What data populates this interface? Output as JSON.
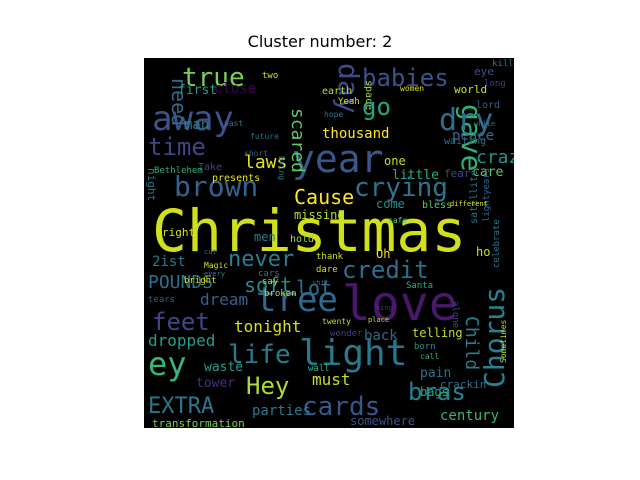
{
  "title": "Cluster number: 2",
  "chart_data": {
    "type": "wordcloud",
    "title": "Cluster number: 2",
    "background": "#000000",
    "colormap": [
      "#440154",
      "#3b528b",
      "#21918c",
      "#5ec962",
      "#fde725"
    ],
    "words": [
      {
        "text": "Christmas",
        "weight": 1.0,
        "color": "#d0e11c"
      },
      {
        "text": "love",
        "weight": 0.72,
        "color": "#48186a"
      },
      {
        "text": "year",
        "weight": 0.55,
        "color": "#38588c"
      },
      {
        "text": "light",
        "weight": 0.5,
        "color": "#2a788e"
      },
      {
        "text": "away",
        "weight": 0.48,
        "color": "#3b528b"
      },
      {
        "text": "tree",
        "weight": 0.47,
        "color": "#31688e"
      },
      {
        "text": "gave",
        "weight": 0.46,
        "color": "#2db27d"
      },
      {
        "text": "dry",
        "weight": 0.45,
        "color": "#2e6e8e"
      },
      {
        "text": "Chorus",
        "weight": 0.44,
        "color": "#26828e"
      },
      {
        "text": "ey",
        "weight": 0.43,
        "color": "#35b779"
      },
      {
        "text": "day",
        "weight": 0.42,
        "color": "#3e4989"
      },
      {
        "text": "brown",
        "weight": 0.4,
        "color": "#33638d"
      },
      {
        "text": "crying",
        "weight": 0.39,
        "color": "#2c738e"
      },
      {
        "text": "life",
        "weight": 0.38,
        "color": "#287c8e"
      },
      {
        "text": "true",
        "weight": 0.37,
        "color": "#7ad151"
      },
      {
        "text": "babies",
        "weight": 0.36,
        "color": "#3b528b"
      },
      {
        "text": "cards",
        "weight": 0.35,
        "color": "#39568c"
      },
      {
        "text": "time",
        "weight": 0.34,
        "color": "#414487"
      },
      {
        "text": "Hey",
        "weight": 0.34,
        "color": "#addc30"
      },
      {
        "text": "go",
        "weight": 0.33,
        "color": "#22a884"
      },
      {
        "text": "credit",
        "weight": 0.32,
        "color": "#2e6f8e"
      },
      {
        "text": "feet",
        "weight": 0.31,
        "color": "#3f4788"
      },
      {
        "text": "bras",
        "weight": 0.31,
        "color": "#25838e"
      },
      {
        "text": "never",
        "weight": 0.3,
        "color": "#277f8e"
      },
      {
        "text": "EXTRA",
        "weight": 0.29,
        "color": "#2b758e"
      },
      {
        "text": "Cause",
        "weight": 0.28,
        "color": "#fde725"
      },
      {
        "text": "need",
        "weight": 0.27,
        "color": "#31688e"
      },
      {
        "text": "lot",
        "weight": 0.26,
        "color": "#2d708e"
      },
      {
        "text": "soft",
        "weight": 0.25,
        "color": "#238a8d"
      },
      {
        "text": "scared",
        "weight": 0.25,
        "color": "#5ec962"
      },
      {
        "text": "laws",
        "weight": 0.22,
        "color": "#e5e419"
      },
      {
        "text": "crazy",
        "weight": 0.22,
        "color": "#21918c"
      },
      {
        "text": "thousand",
        "weight": 0.2,
        "color": "#fde725"
      },
      {
        "text": "POUNDS",
        "weight": 0.2,
        "color": "#2c718e"
      },
      {
        "text": "Child",
        "weight": 0.19,
        "color": "#287d8e"
      },
      {
        "text": "tonight",
        "weight": 0.19,
        "color": "#d8e219"
      },
      {
        "text": "dream",
        "weight": 0.19,
        "color": "#33638d"
      },
      {
        "text": "dropped",
        "weight": 0.19,
        "color": "#1f9e89"
      },
      {
        "text": "must",
        "weight": 0.18,
        "color": "#c2df23"
      },
      {
        "text": "parties",
        "weight": 0.17,
        "color": "#2a788e"
      },
      {
        "text": "century",
        "weight": 0.17,
        "color": "#35b779"
      },
      {
        "text": "peace",
        "weight": 0.17,
        "color": "#31688e"
      },
      {
        "text": "man",
        "weight": 0.17,
        "color": "#287c8e"
      },
      {
        "text": "close",
        "weight": 0.16,
        "color": "#440154"
      },
      {
        "text": "first",
        "weight": 0.15,
        "color": "#20a386"
      },
      {
        "text": "little",
        "weight": 0.15,
        "color": "#27ad81"
      },
      {
        "text": "waste",
        "weight": 0.15,
        "color": "#1fa187"
      },
      {
        "text": "somewhere",
        "weight": 0.15,
        "color": "#3b528b"
      },
      {
        "text": "tower",
        "weight": 0.14,
        "color": "#46307e"
      },
      {
        "text": "transformation",
        "weight": 0.12,
        "color": "#7ad151"
      },
      {
        "text": "missing",
        "weight": 0.12,
        "color": "#b5de2b"
      },
      {
        "text": "come",
        "weight": 0.12,
        "color": "#21918c"
      },
      {
        "text": "care",
        "weight": 0.12,
        "color": "#5ec962"
      },
      {
        "text": "pain",
        "weight": 0.12,
        "color": "#2d708e"
      },
      {
        "text": "back",
        "weight": 0.12,
        "color": "#31688e"
      },
      {
        "text": "telling",
        "weight": 0.12,
        "color": "#bddf26"
      },
      {
        "text": "men",
        "weight": 0.12,
        "color": "#287d8e"
      },
      {
        "text": "Oh",
        "weight": 0.12,
        "color": "#f1e51d"
      },
      {
        "text": "one",
        "weight": 0.12,
        "color": "#c2df23"
      },
      {
        "text": "fear",
        "weight": 0.11,
        "color": "#3e4989"
      },
      {
        "text": "hold",
        "weight": 0.1,
        "color": "#9bd93c"
      },
      {
        "text": "Take",
        "weight": 0.1,
        "color": "#414487"
      },
      {
        "text": "presents",
        "weight": 0.1,
        "color": "#e5e419"
      },
      {
        "text": "2ist",
        "weight": 0.1,
        "color": "#2a788e"
      },
      {
        "text": "right",
        "weight": 0.1,
        "color": "#d8e219"
      },
      {
        "text": "ho",
        "weight": 0.1,
        "color": "#c8e020"
      },
      {
        "text": "bags",
        "weight": 0.1,
        "color": "#22a884"
      },
      {
        "text": "crackin",
        "weight": 0.09,
        "color": "#2c728e"
      },
      {
        "text": "world",
        "weight": 0.09,
        "color": "#d0e11c"
      },
      {
        "text": "eye",
        "weight": 0.09,
        "color": "#3b528b"
      },
      {
        "text": "lord",
        "weight": 0.09,
        "color": "#38588c"
      },
      {
        "text": "long",
        "weight": 0.08,
        "color": "#453781"
      },
      {
        "text": "kill",
        "weight": 0.08,
        "color": "#2e6e8e"
      },
      {
        "text": "space",
        "weight": 0.09,
        "color": "#9bd93c"
      },
      {
        "text": "earth",
        "weight": 0.08,
        "color": "#bddf26"
      },
      {
        "text": "Yeah",
        "weight": 0.08,
        "color": "#cae11f"
      },
      {
        "text": "women",
        "weight": 0.08,
        "color": "#d8e219"
      },
      {
        "text": "night",
        "weight": 0.08,
        "color": "#2c728e"
      },
      {
        "text": "Bethlehem",
        "weight": 0.08,
        "color": "#29af7f"
      },
      {
        "text": "satellite",
        "weight": 0.08,
        "color": "#2a788e"
      },
      {
        "text": "lightyears",
        "weight": 0.08,
        "color": "#31688e"
      },
      {
        "text": "celebrate",
        "weight": 0.08,
        "color": "#2a788e"
      },
      {
        "text": "bless",
        "weight": 0.08,
        "color": "#5ec962"
      },
      {
        "text": "cars",
        "weight": 0.08,
        "color": "#2a788e"
      },
      {
        "text": "dare",
        "weight": 0.08,
        "color": "#cde11d"
      },
      {
        "text": "thank",
        "weight": 0.08,
        "color": "#d0e11c"
      },
      {
        "text": "Santa",
        "weight": 0.08,
        "color": "#27ad81"
      },
      {
        "text": "say",
        "weight": 0.08,
        "color": "#9fda3a"
      },
      {
        "text": "broken",
        "weight": 0.08,
        "color": "#b0dd2f"
      },
      {
        "text": "wonder",
        "weight": 0.08,
        "color": "#443983"
      },
      {
        "text": "born",
        "weight": 0.08,
        "color": "#21918c"
      },
      {
        "text": "alone",
        "weight": 0.08,
        "color": "#3e4989"
      },
      {
        "text": "wall",
        "weight": 0.08,
        "color": "#2db27d"
      },
      {
        "text": "Sometimes",
        "weight": 0.07,
        "color": "#b5de2b"
      },
      {
        "text": "call",
        "weight": 0.07,
        "color": "#29af7f"
      },
      {
        "text": "tears",
        "weight": 0.07,
        "color": "#33638d"
      },
      {
        "text": "bright",
        "weight": 0.07,
        "color": "#d8e219"
      },
      {
        "text": "twenty",
        "weight": 0.07,
        "color": "#c2df23"
      },
      {
        "text": "Magic",
        "weight": 0.07,
        "color": "#d0e11c"
      },
      {
        "text": "short",
        "weight": 0.07,
        "color": "#31688e"
      },
      {
        "text": "past",
        "weight": 0.07,
        "color": "#2c718e"
      },
      {
        "text": "hope",
        "weight": 0.07,
        "color": "#2a788e"
      },
      {
        "text": "two",
        "weight": 0.07,
        "color": "#d0e11c"
      },
      {
        "text": "future",
        "weight": 0.07,
        "color": "#2e6e8e"
      },
      {
        "text": "Bring",
        "weight": 0.07,
        "color": "#287d8e"
      },
      {
        "text": "waiting",
        "weight": 0.07,
        "color": "#31688e"
      },
      {
        "text": "white",
        "weight": 0.06,
        "color": "#2a788e"
      },
      {
        "text": "safe",
        "weight": 0.06,
        "color": "#5ec962"
      },
      {
        "text": "different",
        "weight": 0.06,
        "color": "#d8e219"
      },
      {
        "text": "cut",
        "weight": 0.06,
        "color": "#2e6e8e"
      },
      {
        "text": "every",
        "weight": 0.06,
        "color": "#2a788e"
      },
      {
        "text": "shit",
        "weight": 0.06,
        "color": "#31688e"
      },
      {
        "text": "king",
        "weight": 0.06,
        "color": "#453781"
      },
      {
        "text": "place",
        "weight": 0.06,
        "color": "#bddf26"
      }
    ]
  }
}
